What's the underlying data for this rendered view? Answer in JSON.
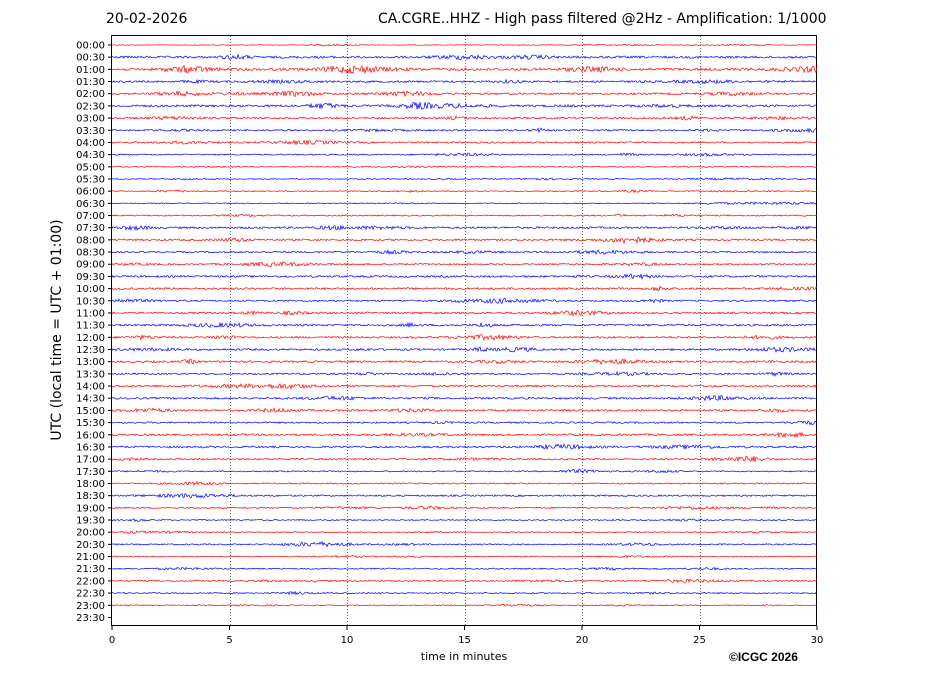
{
  "header": {
    "date": "20-02-2026",
    "title": "CA.CGRE..HHZ - High pass filtered @2Hz - Amplification: 1/1000"
  },
  "footer": {
    "copyright": "©ICGC 2026"
  },
  "colors": {
    "odd_trace": "#ff0000",
    "even_trace": "#0000ff",
    "grid": "#000000"
  },
  "chart_data": {
    "type": "line",
    "title": "CA.CGRE..HHZ - High pass filtered @2Hz - Amplification: 1/1000",
    "xlabel": "time in minutes",
    "ylabel": "UTC (local time = UTC + 01:00)",
    "xlim": [
      0,
      30
    ],
    "x_ticks": [
      "0",
      "5",
      "10",
      "15",
      "20",
      "25",
      "30"
    ],
    "x_tick_values": [
      0,
      5,
      10,
      15,
      20,
      25,
      30
    ],
    "grid": "vertical dotted",
    "rows": [
      "00:00",
      "00:30",
      "01:00",
      "01:30",
      "02:00",
      "02:30",
      "03:00",
      "03:30",
      "04:00",
      "04:30",
      "05:00",
      "05:30",
      "06:00",
      "06:30",
      "07:00",
      "07:30",
      "08:00",
      "08:30",
      "09:00",
      "09:30",
      "10:00",
      "10:30",
      "11:00",
      "11:30",
      "12:00",
      "12:30",
      "13:00",
      "13:30",
      "14:00",
      "14:30",
      "15:00",
      "15:30",
      "16:00",
      "16:30",
      "17:00",
      "17:30",
      "18:00",
      "18:30",
      "19:00",
      "19:30",
      "20:00",
      "20:30",
      "21:00",
      "21:30",
      "22:00",
      "22:30",
      "23:00",
      "23:30"
    ],
    "row_colors": [
      "red",
      "blue"
    ],
    "trace_amplitude": [
      0.2,
      0.7,
      0.8,
      0.6,
      0.6,
      0.7,
      0.6,
      0.5,
      0.5,
      0.4,
      0.3,
      0.3,
      0.3,
      0.3,
      0.4,
      0.6,
      0.6,
      0.5,
      0.5,
      0.6,
      0.6,
      0.5,
      0.6,
      0.6,
      0.6,
      0.6,
      0.6,
      0.5,
      0.6,
      0.6,
      0.6,
      0.5,
      0.6,
      0.6,
      0.5,
      0.4,
      0.4,
      0.5,
      0.4,
      0.4,
      0.3,
      0.4,
      0.3,
      0.4,
      0.4,
      0.4,
      0.3,
      0.0
    ],
    "last_trace_end_minute": 0
  }
}
